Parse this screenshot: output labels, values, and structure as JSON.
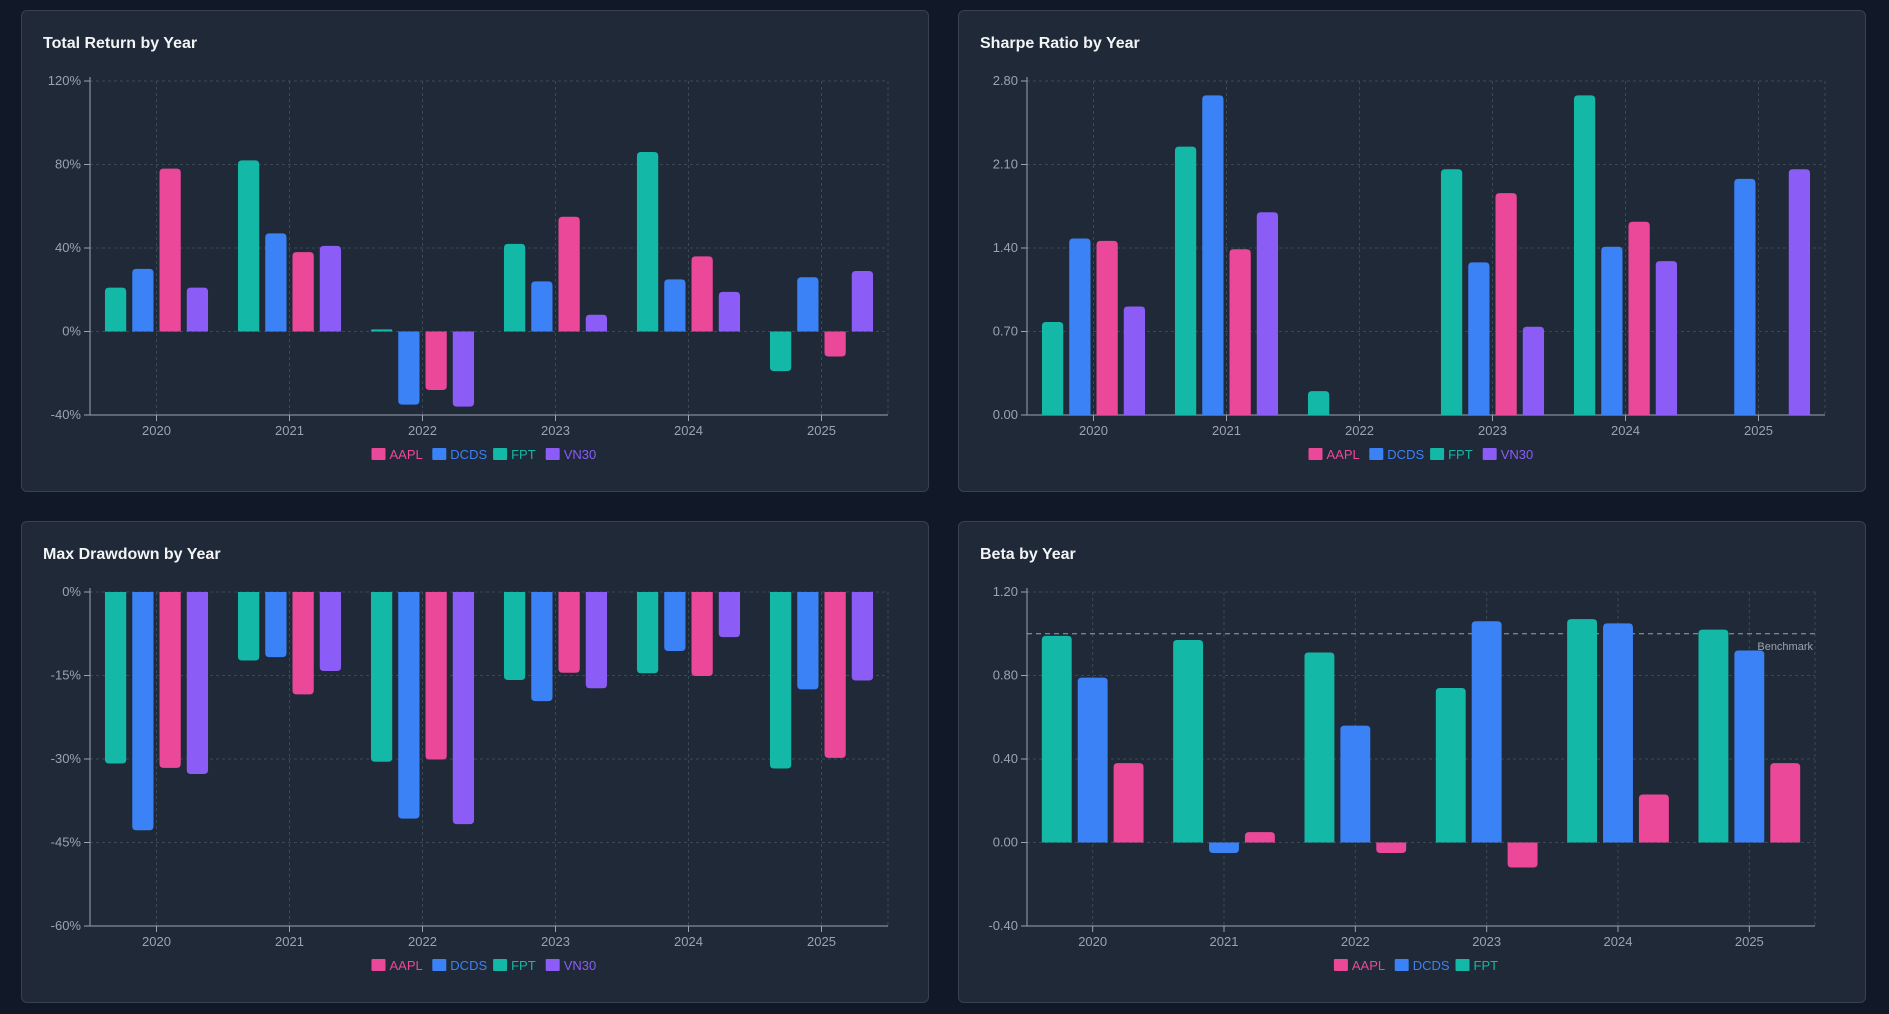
{
  "colors": {
    "AAPL": "#ec4899",
    "DCDS": "#3b82f6",
    "FPT": "#14b8a6",
    "VN30": "#8b5cf6",
    "page_bg": "#111827",
    "panel_bg": "#1f2937",
    "grid": "#4b5563",
    "tick_text": "#9ca3af"
  },
  "chart_data": [
    {
      "type": "bar",
      "title": "Total Return by Year",
      "categories": [
        "2020",
        "2021",
        "2022",
        "2023",
        "2024",
        "2025"
      ],
      "ylim": [
        -40,
        120
      ],
      "yticks": [
        120,
        80,
        40,
        0,
        -40
      ],
      "ytick_labels": [
        "120%",
        "80%",
        "40%",
        "0%",
        "-40%"
      ],
      "series_order": [
        "FPT",
        "DCDS",
        "AAPL",
        "VN30"
      ],
      "legend_order": [
        "AAPL",
        "DCDS",
        "FPT",
        "VN30"
      ],
      "series": [
        {
          "name": "FPT",
          "values": [
            21,
            82,
            1,
            42,
            86,
            -19
          ]
        },
        {
          "name": "DCDS",
          "values": [
            30,
            47,
            -35,
            24,
            25,
            26
          ]
        },
        {
          "name": "AAPL",
          "values": [
            78,
            38,
            -28,
            55,
            36,
            -12
          ]
        },
        {
          "name": "VN30",
          "values": [
            21,
            41,
            -36,
            8,
            19,
            29
          ]
        }
      ],
      "grid": true,
      "legend": "bottom-center"
    },
    {
      "type": "bar",
      "title": "Sharpe Ratio by Year",
      "categories": [
        "2020",
        "2021",
        "2022",
        "2023",
        "2024",
        "2025"
      ],
      "ylim": [
        0,
        2.8
      ],
      "yticks": [
        2.8,
        2.1,
        1.4,
        0.7,
        0
      ],
      "ytick_labels": [
        "2.80",
        "2.10",
        "1.40",
        "0.70",
        "0.00"
      ],
      "series_order": [
        "FPT",
        "DCDS",
        "AAPL",
        "VN30"
      ],
      "legend_order": [
        "AAPL",
        "DCDS",
        "FPT",
        "VN30"
      ],
      "series": [
        {
          "name": "FPT",
          "values": [
            0.78,
            2.25,
            0.2,
            2.06,
            2.68,
            0
          ]
        },
        {
          "name": "DCDS",
          "values": [
            1.48,
            2.68,
            0,
            1.28,
            1.41,
            1.98
          ]
        },
        {
          "name": "AAPL",
          "values": [
            1.46,
            1.39,
            0,
            1.86,
            1.62,
            0
          ]
        },
        {
          "name": "VN30",
          "values": [
            0.91,
            1.7,
            0,
            0.74,
            1.29,
            2.06
          ]
        }
      ],
      "grid": true,
      "legend": "bottom-center"
    },
    {
      "type": "bar",
      "title": "Max Drawdown by Year",
      "categories": [
        "2020",
        "2021",
        "2022",
        "2023",
        "2024",
        "2025"
      ],
      "ylim": [
        -60,
        0
      ],
      "yticks": [
        0,
        -15,
        -30,
        -45,
        -60
      ],
      "ytick_labels": [
        "0%",
        "-15%",
        "-30%",
        "-45%",
        "-60%"
      ],
      "series_order": [
        "FPT",
        "DCDS",
        "AAPL",
        "VN30"
      ],
      "legend_order": [
        "AAPL",
        "DCDS",
        "FPT",
        "VN30"
      ],
      "series": [
        {
          "name": "FPT",
          "values": [
            -30.8,
            -12.3,
            -30.5,
            -15.8,
            -14.6,
            -31.7
          ]
        },
        {
          "name": "DCDS",
          "values": [
            -42.8,
            -11.7,
            -40.7,
            -19.6,
            -10.6,
            -17.5
          ]
        },
        {
          "name": "AAPL",
          "values": [
            -31.6,
            -18.4,
            -30.1,
            -14.5,
            -15.1,
            -29.8
          ]
        },
        {
          "name": "VN30",
          "values": [
            -32.7,
            -14.2,
            -41.7,
            -17.3,
            -8.1,
            -15.9
          ]
        }
      ],
      "grid": true,
      "legend": "bottom-center"
    },
    {
      "type": "bar",
      "title": "Beta by Year",
      "categories": [
        "2020",
        "2021",
        "2022",
        "2023",
        "2024",
        "2025"
      ],
      "ylim": [
        -0.4,
        1.2
      ],
      "yticks": [
        1.2,
        0.8,
        0.4,
        0,
        -0.4
      ],
      "ytick_labels": [
        "1.20",
        "0.80",
        "0.40",
        "0.00",
        "-0.40"
      ],
      "series_order": [
        "FPT",
        "DCDS",
        "AAPL"
      ],
      "legend_order": [
        "AAPL",
        "DCDS",
        "FPT"
      ],
      "series": [
        {
          "name": "FPT",
          "values": [
            0.99,
            0.97,
            0.91,
            0.74,
            1.07,
            1.02
          ]
        },
        {
          "name": "DCDS",
          "values": [
            0.79,
            -0.05,
            0.56,
            1.06,
            1.05,
            0.92
          ]
        },
        {
          "name": "AAPL",
          "values": [
            0.38,
            0.05,
            -0.05,
            -0.12,
            0.23,
            0.38
          ]
        }
      ],
      "reference_line": {
        "value": 1.0,
        "label": "Benchmark"
      },
      "grid": true,
      "legend": "bottom-center"
    }
  ]
}
